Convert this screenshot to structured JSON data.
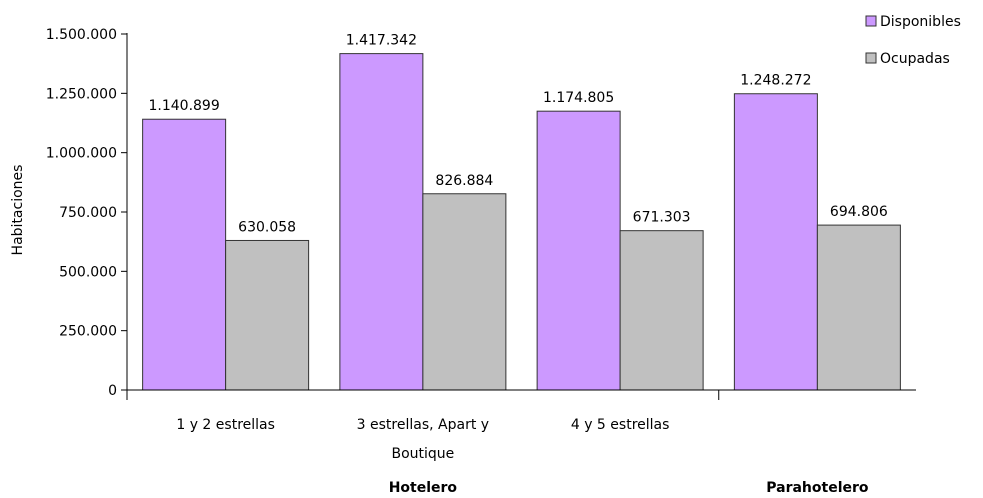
{
  "chart_data": {
    "type": "bar",
    "ylabel": "Habitaciones",
    "ylim": [
      0,
      1500000
    ],
    "yticks": [
      0,
      250000,
      500000,
      750000,
      1000000,
      1250000,
      1500000
    ],
    "ytick_labels": [
      "0",
      "250.000",
      "500.000",
      "750.000",
      "1.000.000",
      "1.250.000",
      "1.500.000"
    ],
    "categories": [
      {
        "label_lines": [
          "1 y 2 estrellas"
        ],
        "group": "Hotelero"
      },
      {
        "label_lines": [
          "3 estrellas, Apart y",
          "Boutique"
        ],
        "group": "Hotelero"
      },
      {
        "label_lines": [
          "4 y 5 estrellas"
        ],
        "group": "Hotelero"
      },
      {
        "label_lines": [],
        "group": "Parahotelero"
      }
    ],
    "groups": [
      "Hotelero",
      "Parahotelero"
    ],
    "series": [
      {
        "name": "Disponibles",
        "color": "#cc99ff",
        "values": [
          1140899,
          1417342,
          1174805,
          1248272
        ],
        "value_labels": [
          "1.140.899",
          "1.417.342",
          "1.174.805",
          "1.248.272"
        ]
      },
      {
        "name": "Ocupadas",
        "color": "#c0c0c0",
        "values": [
          630058,
          826884,
          671303,
          694806
        ],
        "value_labels": [
          "630.058",
          "826.884",
          "671.303",
          "694.806"
        ]
      }
    ],
    "grid": false,
    "legend_position": "top-right"
  }
}
